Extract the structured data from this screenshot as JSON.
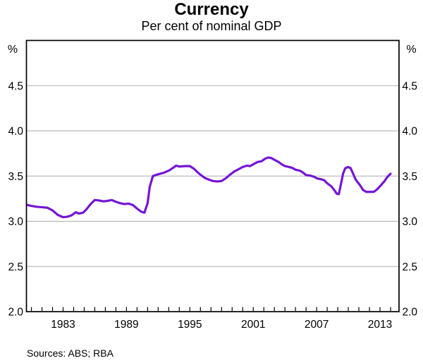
{
  "title": "Currency",
  "subtitle": "Per cent of nominal GDP",
  "footer": {
    "sources": "Sources: ABS; RBA"
  },
  "colors": {
    "line": "#7515d6",
    "grid": "#adadad",
    "axis": "#000000",
    "text": "#000000"
  },
  "chart_data": {
    "type": "line",
    "title": "Currency",
    "subtitle": "Per cent of nominal GDP",
    "sources": "Sources: ABS; RBA",
    "unit_left": "%",
    "unit_right": "%",
    "ylim": [
      2.0,
      5.0
    ],
    "yticks": [
      2.0,
      2.5,
      3.0,
      3.5,
      4.0,
      4.5
    ],
    "ytick_format_decimals": 1,
    "xlim": [
      1979.53,
      2014.8
    ],
    "xtick_labels": [
      1983,
      1989,
      1995,
      2001,
      2007,
      2013
    ],
    "minor_xticks": {
      "start": 1980,
      "end": 2014,
      "step": 1
    },
    "grid": true,
    "legend": "none",
    "series": [
      {
        "name": "Currency as per cent of nominal GDP",
        "points": [
          [
            1979.6,
            3.18
          ],
          [
            1980.0,
            3.17
          ],
          [
            1980.5,
            3.16
          ],
          [
            1981.0,
            3.155
          ],
          [
            1981.5,
            3.15
          ],
          [
            1982.0,
            3.12
          ],
          [
            1982.5,
            3.07
          ],
          [
            1983.0,
            3.045
          ],
          [
            1983.4,
            3.05
          ],
          [
            1983.8,
            3.065
          ],
          [
            1984.2,
            3.1
          ],
          [
            1984.5,
            3.085
          ],
          [
            1984.9,
            3.095
          ],
          [
            1985.2,
            3.13
          ],
          [
            1985.6,
            3.19
          ],
          [
            1986.0,
            3.235
          ],
          [
            1986.4,
            3.23
          ],
          [
            1986.8,
            3.22
          ],
          [
            1987.2,
            3.225
          ],
          [
            1987.6,
            3.235
          ],
          [
            1988.0,
            3.215
          ],
          [
            1988.4,
            3.2
          ],
          [
            1988.8,
            3.19
          ],
          [
            1989.2,
            3.195
          ],
          [
            1989.6,
            3.18
          ],
          [
            1990.0,
            3.14
          ],
          [
            1990.4,
            3.105
          ],
          [
            1990.7,
            3.095
          ],
          [
            1991.0,
            3.2
          ],
          [
            1991.2,
            3.38
          ],
          [
            1991.5,
            3.5
          ],
          [
            1992.0,
            3.52
          ],
          [
            1992.5,
            3.535
          ],
          [
            1993.0,
            3.56
          ],
          [
            1993.4,
            3.59
          ],
          [
            1993.7,
            3.615
          ],
          [
            1994.0,
            3.605
          ],
          [
            1994.5,
            3.61
          ],
          [
            1995.0,
            3.61
          ],
          [
            1995.4,
            3.58
          ],
          [
            1995.7,
            3.545
          ],
          [
            1996.0,
            3.515
          ],
          [
            1996.4,
            3.48
          ],
          [
            1996.8,
            3.46
          ],
          [
            1997.2,
            3.445
          ],
          [
            1997.6,
            3.44
          ],
          [
            1998.0,
            3.445
          ],
          [
            1998.4,
            3.475
          ],
          [
            1998.8,
            3.515
          ],
          [
            1999.2,
            3.55
          ],
          [
            1999.6,
            3.575
          ],
          [
            2000.0,
            3.6
          ],
          [
            2000.4,
            3.615
          ],
          [
            2000.7,
            3.61
          ],
          [
            2001.0,
            3.63
          ],
          [
            2001.4,
            3.655
          ],
          [
            2001.8,
            3.665
          ],
          [
            2002.1,
            3.69
          ],
          [
            2002.4,
            3.705
          ],
          [
            2002.7,
            3.7
          ],
          [
            2003.0,
            3.68
          ],
          [
            2003.4,
            3.655
          ],
          [
            2003.7,
            3.63
          ],
          [
            2004.0,
            3.61
          ],
          [
            2004.4,
            3.6
          ],
          [
            2004.7,
            3.59
          ],
          [
            2005.0,
            3.57
          ],
          [
            2005.4,
            3.56
          ],
          [
            2005.7,
            3.54
          ],
          [
            2006.0,
            3.51
          ],
          [
            2006.4,
            3.505
          ],
          [
            2006.8,
            3.49
          ],
          [
            2007.0,
            3.475
          ],
          [
            2007.4,
            3.465
          ],
          [
            2007.7,
            3.455
          ],
          [
            2008.0,
            3.42
          ],
          [
            2008.4,
            3.385
          ],
          [
            2008.7,
            3.34
          ],
          [
            2008.9,
            3.305
          ],
          [
            2009.1,
            3.3
          ],
          [
            2009.3,
            3.41
          ],
          [
            2009.5,
            3.525
          ],
          [
            2009.7,
            3.585
          ],
          [
            2009.95,
            3.6
          ],
          [
            2010.2,
            3.59
          ],
          [
            2010.4,
            3.54
          ],
          [
            2010.7,
            3.46
          ],
          [
            2011.1,
            3.4
          ],
          [
            2011.4,
            3.345
          ],
          [
            2011.7,
            3.325
          ],
          [
            2012.1,
            3.325
          ],
          [
            2012.4,
            3.325
          ],
          [
            2012.7,
            3.35
          ],
          [
            2013.1,
            3.4
          ],
          [
            2013.4,
            3.44
          ],
          [
            2013.7,
            3.49
          ],
          [
            2014.0,
            3.525
          ]
        ]
      }
    ]
  }
}
